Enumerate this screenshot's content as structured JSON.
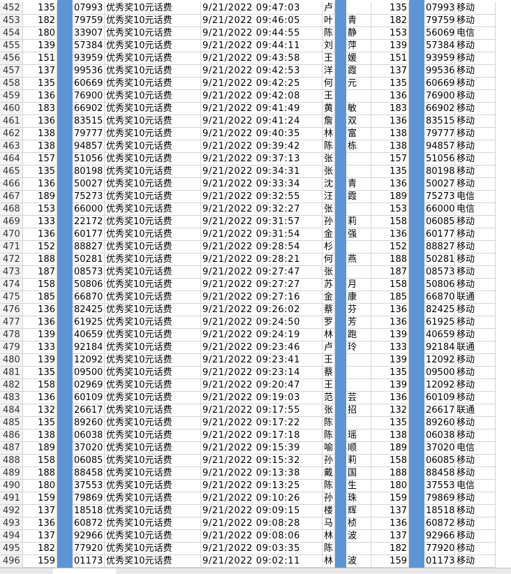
{
  "sheet": {
    "rows": [
      [
        "452",
        "135",
        "07993",
        "优秀奖10元话费",
        "9/21/2022 09:47:03",
        "卢",
        "",
        "135",
        "07993",
        "移动"
      ],
      [
        "453",
        "182",
        "79759",
        "优秀奖10元话费",
        "9/21/2022 09:46:05",
        "叶",
        "青",
        "182",
        "79759",
        "移动"
      ],
      [
        "454",
        "180",
        "33907",
        "优秀奖10元话费",
        "9/21/2022 09:44:55",
        "陈",
        "静",
        "153",
        "56069",
        "电信"
      ],
      [
        "455",
        "139",
        "57384",
        "优秀奖10元话费",
        "9/21/2022 09:44:11",
        "刘",
        "萍",
        "139",
        "57384",
        "移动"
      ],
      [
        "456",
        "151",
        "93959",
        "优秀奖10元话费",
        "9/21/2022 09:43:58",
        "王",
        "媛",
        "151",
        "93959",
        "移动"
      ],
      [
        "457",
        "137",
        "99536",
        "优秀奖10元话费",
        "9/21/2022 09:42:53",
        "洋",
        "霞",
        "137",
        "99536",
        "移动"
      ],
      [
        "458",
        "135",
        "60669",
        "优秀奖10元话费",
        "9/21/2022 09:42:25",
        "何",
        "元",
        "135",
        "60669",
        "移动"
      ],
      [
        "459",
        "136",
        "76900",
        "优秀奖10元话费",
        "9/21/2022 09:42:08",
        "王",
        "",
        "136",
        "76900",
        "移动"
      ],
      [
        "460",
        "183",
        "66902",
        "优秀奖10元话费",
        "9/21/2022 09:41:49",
        "黄",
        "敏",
        "183",
        "66902",
        "移动"
      ],
      [
        "461",
        "136",
        "83515",
        "优秀奖10元话费",
        "9/21/2022 09:41:24",
        "詹",
        "双",
        "136",
        "83515",
        "移动"
      ],
      [
        "462",
        "138",
        "79777",
        "优秀奖10元话费",
        "9/21/2022 09:40:35",
        "林",
        "富",
        "138",
        "79777",
        "移动"
      ],
      [
        "463",
        "138",
        "94857",
        "优秀奖10元话费",
        "9/21/2022 09:39:42",
        "陈",
        "栋",
        "138",
        "94857",
        "移动"
      ],
      [
        "464",
        "157",
        "51056",
        "优秀奖10元话费",
        "9/21/2022 09:37:13",
        "张",
        "",
        "157",
        "51056",
        "移动"
      ],
      [
        "465",
        "135",
        "80198",
        "优秀奖10元话费",
        "9/21/2022 09:34:31",
        "张",
        "",
        "135",
        "80198",
        "移动"
      ],
      [
        "466",
        "136",
        "50027",
        "优秀奖10元话费",
        "9/21/2022 09:33:34",
        "沈",
        "青",
        "136",
        "50027",
        "移动"
      ],
      [
        "467",
        "189",
        "75273",
        "优秀奖10元话费",
        "9/21/2022 09:32:55",
        "汪",
        "霞",
        "189",
        "75273",
        "电信"
      ],
      [
        "468",
        "153",
        "66000",
        "优秀奖10元话费",
        "9/21/2022 09:32:27",
        "张",
        "",
        "153",
        "66000",
        "电信"
      ],
      [
        "469",
        "133",
        "22172",
        "优秀奖10元话费",
        "9/21/2022 09:31:57",
        "孙",
        "莉",
        "158",
        "06085",
        "移动"
      ],
      [
        "470",
        "136",
        "60177",
        "优秀奖10元话费",
        "9/21/2022 09:31:54",
        "金",
        "强",
        "136",
        "60177",
        "移动"
      ],
      [
        "471",
        "152",
        "88827",
        "优秀奖10元话费",
        "9/21/2022 09:28:54",
        "杉",
        "",
        "152",
        "88827",
        "移动"
      ],
      [
        "472",
        "188",
        "50281",
        "优秀奖10元话费",
        "9/21/2022 09:28:21",
        "何",
        "燕",
        "188",
        "50281",
        "移动"
      ],
      [
        "473",
        "187",
        "08573",
        "优秀奖10元话费",
        "9/21/2022 09:27:47",
        "张",
        "",
        "187",
        "08573",
        "移动"
      ],
      [
        "474",
        "158",
        "50806",
        "优秀奖10元话费",
        "9/21/2022 09:27:27",
        "苏",
        "月",
        "158",
        "50806",
        "移动"
      ],
      [
        "475",
        "185",
        "66870",
        "优秀奖10元话费",
        "9/21/2022 09:27:16",
        "金",
        "康",
        "185",
        "66870",
        "联通"
      ],
      [
        "476",
        "136",
        "82425",
        "优秀奖10元话费",
        "9/21/2022 09:26:02",
        "蔡",
        "芬",
        "136",
        "82425",
        "移动"
      ],
      [
        "477",
        "136",
        "61925",
        "优秀奖10元话费",
        "9/21/2022 09:24:50",
        "罗",
        "芳",
        "136",
        "61925",
        "移动"
      ],
      [
        "478",
        "139",
        "40659",
        "优秀奖10元话费",
        "9/21/2022 09:24:19",
        "林",
        "跑",
        "139",
        "40659",
        "移动"
      ],
      [
        "479",
        "133",
        "92184",
        "优秀奖10元话费",
        "9/21/2022 09:23:46",
        "卢",
        "玲",
        "133",
        "92184",
        "联通"
      ],
      [
        "480",
        "139",
        "12092",
        "优秀奖10元话费",
        "9/21/2022 09:23:41",
        "王",
        "",
        "139",
        "12092",
        "移动"
      ],
      [
        "481",
        "135",
        "09500",
        "优秀奖10元话费",
        "9/21/2022 09:23:14",
        "蔡",
        "",
        "135",
        "09500",
        "移动"
      ],
      [
        "482",
        "158",
        "02969",
        "优秀奖10元话费",
        "9/21/2022 09:20:47",
        "王",
        "",
        "139",
        "12092",
        "移动"
      ],
      [
        "483",
        "136",
        "60109",
        "优秀奖10元话费",
        "9/21/2022 09:19:03",
        "范",
        "芸",
        "136",
        "60109",
        "移动"
      ],
      [
        "484",
        "132",
        "26617",
        "优秀奖10元话费",
        "9/21/2022 09:17:55",
        "张",
        "招",
        "132",
        "26617",
        "联通"
      ],
      [
        "485",
        "135",
        "89260",
        "优秀奖10元话费",
        "9/21/2022 09:17:22",
        "陈",
        "",
        "135",
        "89260",
        "移动"
      ],
      [
        "486",
        "138",
        "06038",
        "优秀奖10元话费",
        "9/21/2022 09:17:18",
        "陈",
        "瑶",
        "138",
        "06038",
        "移动"
      ],
      [
        "487",
        "189",
        "37020",
        "优秀奖10元话费",
        "9/21/2022 09:15:39",
        "喻",
        "顺",
        "189",
        "37020",
        "电信"
      ],
      [
        "488",
        "158",
        "06085",
        "优秀奖10元话费",
        "9/21/2022 09:15:32",
        "孙",
        "莉",
        "158",
        "06085",
        "移动"
      ],
      [
        "489",
        "188",
        "88458",
        "优秀奖10元话费",
        "9/21/2022 09:13:38",
        "戴",
        "国",
        "188",
        "88458",
        "移动"
      ],
      [
        "490",
        "180",
        "37553",
        "优秀奖10元话费",
        "9/21/2022 09:13:25",
        "陈",
        "生",
        "180",
        "37553",
        "电信"
      ],
      [
        "491",
        "159",
        "79869",
        "优秀奖10元话费",
        "9/21/2022 09:10:26",
        "孙",
        "珠",
        "159",
        "79869",
        "移动"
      ],
      [
        "492",
        "137",
        "18518",
        "优秀奖10元话费",
        "9/21/2022 09:09:15",
        "楼",
        "辉",
        "137",
        "18518",
        "移动"
      ],
      [
        "493",
        "136",
        "60872",
        "优秀奖10元话费",
        "9/21/2022 09:08:28",
        "马",
        "桢",
        "136",
        "60872",
        "移动"
      ],
      [
        "494",
        "137",
        "92966",
        "优秀奖10元话费",
        "9/21/2022 09:08:06",
        "林",
        "波",
        "137",
        "92966",
        "移动"
      ],
      [
        "495",
        "182",
        "77920",
        "优秀奖10元话费",
        "9/21/2022 09:03:35",
        "陈",
        "",
        "182",
        "77920",
        "移动"
      ],
      [
        "496",
        "159",
        "01173",
        "优秀奖10元话费",
        "9/21/2022 09:02:11",
        "林",
        "波",
        "159",
        "01173",
        "移动"
      ]
    ]
  }
}
